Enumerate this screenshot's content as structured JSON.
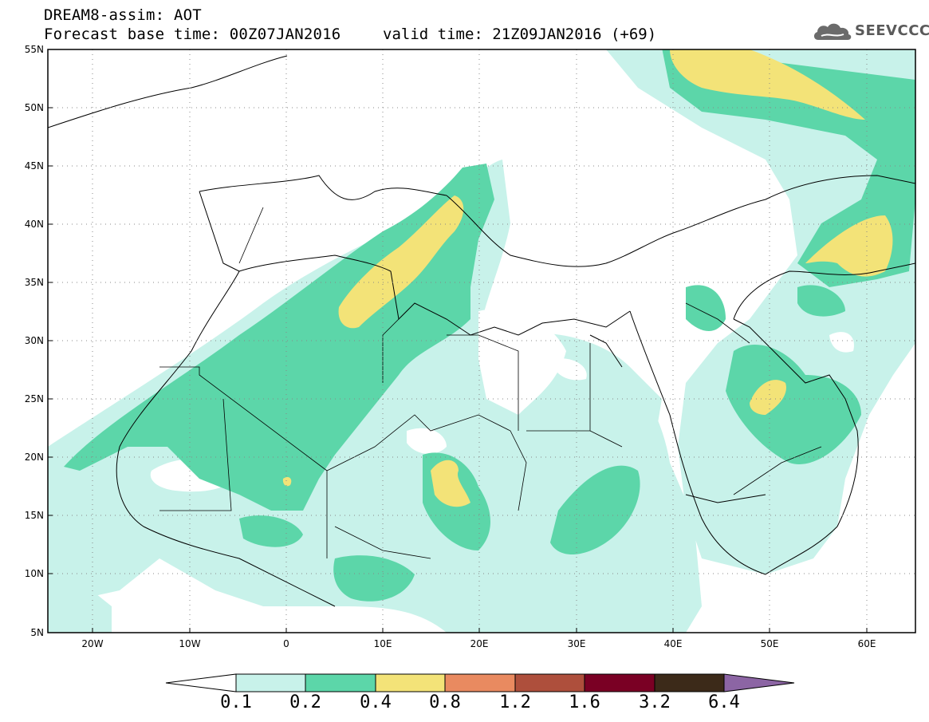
{
  "header": {
    "title": "DREAM8-assim: AOT",
    "base_time": "Forecast base time: 00Z07JAN2016",
    "valid_time": "valid time: 21Z09JAN2016 (+69)"
  },
  "logo": {
    "text": "SEEVCCC",
    "icon": "cloud-icon"
  },
  "map": {
    "lat_labels": [
      "55N",
      "50N",
      "45N",
      "40N",
      "35N",
      "30N",
      "25N",
      "20N",
      "15N",
      "10N",
      "5N"
    ],
    "lon_labels": [
      "20W",
      "10W",
      "0",
      "10E",
      "20E",
      "30E",
      "40E",
      "50E",
      "60E"
    ],
    "grid": true
  },
  "legend": {
    "values": [
      "0.1",
      "0.2",
      "0.4",
      "0.8",
      "1.2",
      "1.6",
      "3.2",
      "6.4"
    ],
    "colors": [
      "#ffffff",
      "#c8f2ea",
      "#5cd6a9",
      "#f3e378",
      "#e98a60",
      "#ae4f3c",
      "#7a0024",
      "#3c2a19",
      "#8c65a4"
    ]
  },
  "colors": {
    "light": "#c8f2ea",
    "medium": "#5cd6a9",
    "high": "#f3e378"
  }
}
